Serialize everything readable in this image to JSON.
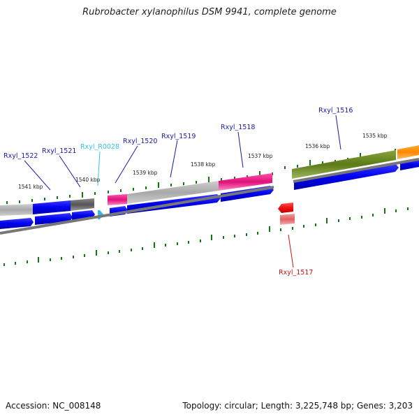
{
  "title": "Rubrobacter xylanophilus DSM 9941, complete genome",
  "footer": {
    "accession": "Accession: NC_008148",
    "summary": "Topology: circular; Length: 3,225,748 bp; Genes: 3,203"
  },
  "scale_labels": [
    "1541 kbp",
    "1540 kbp",
    "1539 kbp",
    "1538 kbp",
    "1537 kbp",
    "1536 kbp",
    "1535 kbp"
  ],
  "gene_labels": [
    {
      "text": "Rxyl_1522",
      "color": "#1a1aa6"
    },
    {
      "text": "Rxyl_1521",
      "color": "#1a1aa6"
    },
    {
      "text": "Rxyl_R0028",
      "color": "#33c7e0"
    },
    {
      "text": "Rxyl_1520",
      "color": "#1a1aa6"
    },
    {
      "text": "Rxyl_1519",
      "color": "#1a1aa6"
    },
    {
      "text": "Rxyl_1518",
      "color": "#1a1aa6"
    },
    {
      "text": "Rxyl_1516",
      "color": "#1a1aa6"
    },
    {
      "text": "Rxyl_1517",
      "color": "#cc1111"
    }
  ],
  "colors": {
    "gene_blue": "#0000ee",
    "rna_cyan": "#33bbee",
    "reverse_red": "#ee1111",
    "cog_pink": "#ee2288",
    "cog_olive": "#6b8a22",
    "cog_orange": "#ff8800",
    "cog_gray": "#aaaaaa",
    "tick_green": "#117711",
    "backbone_gray": "#777777"
  }
}
